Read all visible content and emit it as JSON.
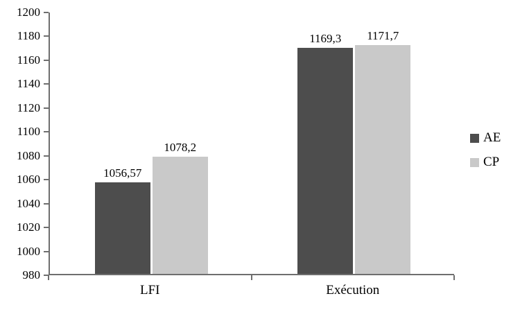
{
  "chart_data": {
    "type": "bar",
    "title": "",
    "categories": [
      "LFI",
      "Exécution"
    ],
    "series": [
      {
        "name": "AE",
        "color": "#4d4d4d",
        "values": [
          1056.57,
          1169.3
        ],
        "labels": [
          "1056,57",
          "1169,3"
        ]
      },
      {
        "name": "CP",
        "color": "#c9c9c9",
        "values": [
          1078.2,
          1171.7
        ],
        "labels": [
          "1078,2",
          "1171,7"
        ]
      }
    ],
    "ylim": [
      980,
      1200
    ],
    "yticks": [
      980,
      1000,
      1020,
      1040,
      1060,
      1080,
      1100,
      1120,
      1140,
      1160,
      1180,
      1200
    ],
    "grid": false,
    "legend_position": "right",
    "xlabel": "",
    "ylabel": "",
    "axis_color": "#6e6e6e",
    "text_color": "#000000"
  }
}
